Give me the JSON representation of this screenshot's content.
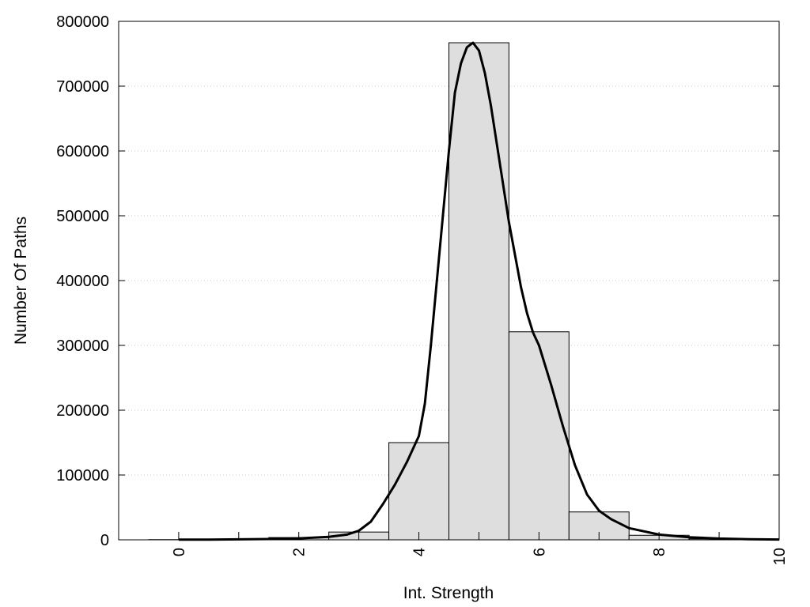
{
  "chart_data": {
    "type": "bar",
    "title": "",
    "xlabel": "Int. Strength",
    "ylabel": "Number Of Paths",
    "xlim": [
      -1,
      10
    ],
    "ylim": [
      0,
      800000
    ],
    "x_ticks": [
      0,
      2,
      4,
      6,
      8,
      10
    ],
    "y_ticks": [
      0,
      100000,
      200000,
      300000,
      400000,
      500000,
      600000,
      700000,
      800000
    ],
    "grid": "horizontal dotted",
    "legend": "none",
    "colors": {
      "bar_fill": "#dedede",
      "bar_stroke": "#000000",
      "curve": "#000000",
      "grid": "#c8c8c8"
    },
    "bars": {
      "x": [
        0,
        1,
        2,
        3,
        4,
        5,
        6,
        7,
        8,
        9
      ],
      "values": [
        300,
        900,
        3500,
        12000,
        150000,
        767000,
        321000,
        43000,
        7000,
        1500
      ]
    },
    "curve": {
      "x": [
        0,
        0.5,
        1,
        1.5,
        2,
        2.5,
        2.8,
        3.0,
        3.2,
        3.4,
        3.6,
        3.8,
        4.0,
        4.1,
        4.2,
        4.3,
        4.4,
        4.5,
        4.6,
        4.7,
        4.8,
        4.9,
        5.0,
        5.1,
        5.2,
        5.3,
        5.4,
        5.5,
        5.6,
        5.7,
        5.8,
        5.9,
        6.0,
        6.2,
        6.4,
        6.6,
        6.8,
        7.0,
        7.2,
        7.5,
        8.0,
        8.5,
        9.0,
        9.5,
        10.0
      ],
      "y": [
        200,
        400,
        700,
        1200,
        2200,
        4500,
        8000,
        14000,
        28000,
        55000,
        85000,
        120000,
        160000,
        210000,
        300000,
        400000,
        500000,
        600000,
        690000,
        735000,
        760000,
        767000,
        755000,
        720000,
        670000,
        610000,
        550000,
        490000,
        440000,
        390000,
        350000,
        320000,
        300000,
        240000,
        175000,
        115000,
        70000,
        45000,
        32000,
        18000,
        8000,
        4000,
        2000,
        1000,
        500
      ]
    }
  }
}
